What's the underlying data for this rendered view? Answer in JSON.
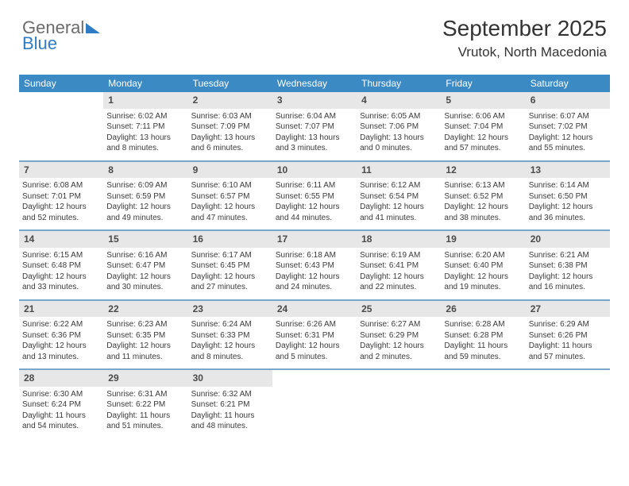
{
  "brand": {
    "word1": "General",
    "word2": "Blue"
  },
  "header": {
    "month": "September 2025",
    "location": "Vrutok, North Macedonia"
  },
  "style": {
    "header_bg": "#3b8ac4",
    "header_fg": "#ffffff",
    "daynum_bg": "#e7e7e7",
    "week_border": "#7aa6c9",
    "text_color": "#333333",
    "logo_gray": "#6b6b6b",
    "logo_blue": "#2f7cc4",
    "font_family": "Arial",
    "month_fontsize": 28,
    "location_fontsize": 17,
    "dow_fontsize": 12,
    "daynum_fontsize": 12,
    "detail_fontsize": 10
  },
  "days_of_week": [
    "Sunday",
    "Monday",
    "Tuesday",
    "Wednesday",
    "Thursday",
    "Friday",
    "Saturday"
  ],
  "weeks": [
    [
      {
        "n": "",
        "sunrise": "",
        "sunset": "",
        "daylight": ""
      },
      {
        "n": "1",
        "sunrise": "Sunrise: 6:02 AM",
        "sunset": "Sunset: 7:11 PM",
        "daylight": "Daylight: 13 hours and 8 minutes."
      },
      {
        "n": "2",
        "sunrise": "Sunrise: 6:03 AM",
        "sunset": "Sunset: 7:09 PM",
        "daylight": "Daylight: 13 hours and 6 minutes."
      },
      {
        "n": "3",
        "sunrise": "Sunrise: 6:04 AM",
        "sunset": "Sunset: 7:07 PM",
        "daylight": "Daylight: 13 hours and 3 minutes."
      },
      {
        "n": "4",
        "sunrise": "Sunrise: 6:05 AM",
        "sunset": "Sunset: 7:06 PM",
        "daylight": "Daylight: 13 hours and 0 minutes."
      },
      {
        "n": "5",
        "sunrise": "Sunrise: 6:06 AM",
        "sunset": "Sunset: 7:04 PM",
        "daylight": "Daylight: 12 hours and 57 minutes."
      },
      {
        "n": "6",
        "sunrise": "Sunrise: 6:07 AM",
        "sunset": "Sunset: 7:02 PM",
        "daylight": "Daylight: 12 hours and 55 minutes."
      }
    ],
    [
      {
        "n": "7",
        "sunrise": "Sunrise: 6:08 AM",
        "sunset": "Sunset: 7:01 PM",
        "daylight": "Daylight: 12 hours and 52 minutes."
      },
      {
        "n": "8",
        "sunrise": "Sunrise: 6:09 AM",
        "sunset": "Sunset: 6:59 PM",
        "daylight": "Daylight: 12 hours and 49 minutes."
      },
      {
        "n": "9",
        "sunrise": "Sunrise: 6:10 AM",
        "sunset": "Sunset: 6:57 PM",
        "daylight": "Daylight: 12 hours and 47 minutes."
      },
      {
        "n": "10",
        "sunrise": "Sunrise: 6:11 AM",
        "sunset": "Sunset: 6:55 PM",
        "daylight": "Daylight: 12 hours and 44 minutes."
      },
      {
        "n": "11",
        "sunrise": "Sunrise: 6:12 AM",
        "sunset": "Sunset: 6:54 PM",
        "daylight": "Daylight: 12 hours and 41 minutes."
      },
      {
        "n": "12",
        "sunrise": "Sunrise: 6:13 AM",
        "sunset": "Sunset: 6:52 PM",
        "daylight": "Daylight: 12 hours and 38 minutes."
      },
      {
        "n": "13",
        "sunrise": "Sunrise: 6:14 AM",
        "sunset": "Sunset: 6:50 PM",
        "daylight": "Daylight: 12 hours and 36 minutes."
      }
    ],
    [
      {
        "n": "14",
        "sunrise": "Sunrise: 6:15 AM",
        "sunset": "Sunset: 6:48 PM",
        "daylight": "Daylight: 12 hours and 33 minutes."
      },
      {
        "n": "15",
        "sunrise": "Sunrise: 6:16 AM",
        "sunset": "Sunset: 6:47 PM",
        "daylight": "Daylight: 12 hours and 30 minutes."
      },
      {
        "n": "16",
        "sunrise": "Sunrise: 6:17 AM",
        "sunset": "Sunset: 6:45 PM",
        "daylight": "Daylight: 12 hours and 27 minutes."
      },
      {
        "n": "17",
        "sunrise": "Sunrise: 6:18 AM",
        "sunset": "Sunset: 6:43 PM",
        "daylight": "Daylight: 12 hours and 24 minutes."
      },
      {
        "n": "18",
        "sunrise": "Sunrise: 6:19 AM",
        "sunset": "Sunset: 6:41 PM",
        "daylight": "Daylight: 12 hours and 22 minutes."
      },
      {
        "n": "19",
        "sunrise": "Sunrise: 6:20 AM",
        "sunset": "Sunset: 6:40 PM",
        "daylight": "Daylight: 12 hours and 19 minutes."
      },
      {
        "n": "20",
        "sunrise": "Sunrise: 6:21 AM",
        "sunset": "Sunset: 6:38 PM",
        "daylight": "Daylight: 12 hours and 16 minutes."
      }
    ],
    [
      {
        "n": "21",
        "sunrise": "Sunrise: 6:22 AM",
        "sunset": "Sunset: 6:36 PM",
        "daylight": "Daylight: 12 hours and 13 minutes."
      },
      {
        "n": "22",
        "sunrise": "Sunrise: 6:23 AM",
        "sunset": "Sunset: 6:35 PM",
        "daylight": "Daylight: 12 hours and 11 minutes."
      },
      {
        "n": "23",
        "sunrise": "Sunrise: 6:24 AM",
        "sunset": "Sunset: 6:33 PM",
        "daylight": "Daylight: 12 hours and 8 minutes."
      },
      {
        "n": "24",
        "sunrise": "Sunrise: 6:26 AM",
        "sunset": "Sunset: 6:31 PM",
        "daylight": "Daylight: 12 hours and 5 minutes."
      },
      {
        "n": "25",
        "sunrise": "Sunrise: 6:27 AM",
        "sunset": "Sunset: 6:29 PM",
        "daylight": "Daylight: 12 hours and 2 minutes."
      },
      {
        "n": "26",
        "sunrise": "Sunrise: 6:28 AM",
        "sunset": "Sunset: 6:28 PM",
        "daylight": "Daylight: 11 hours and 59 minutes."
      },
      {
        "n": "27",
        "sunrise": "Sunrise: 6:29 AM",
        "sunset": "Sunset: 6:26 PM",
        "daylight": "Daylight: 11 hours and 57 minutes."
      }
    ],
    [
      {
        "n": "28",
        "sunrise": "Sunrise: 6:30 AM",
        "sunset": "Sunset: 6:24 PM",
        "daylight": "Daylight: 11 hours and 54 minutes."
      },
      {
        "n": "29",
        "sunrise": "Sunrise: 6:31 AM",
        "sunset": "Sunset: 6:22 PM",
        "daylight": "Daylight: 11 hours and 51 minutes."
      },
      {
        "n": "30",
        "sunrise": "Sunrise: 6:32 AM",
        "sunset": "Sunset: 6:21 PM",
        "daylight": "Daylight: 11 hours and 48 minutes."
      },
      {
        "n": "",
        "sunrise": "",
        "sunset": "",
        "daylight": ""
      },
      {
        "n": "",
        "sunrise": "",
        "sunset": "",
        "daylight": ""
      },
      {
        "n": "",
        "sunrise": "",
        "sunset": "",
        "daylight": ""
      },
      {
        "n": "",
        "sunrise": "",
        "sunset": "",
        "daylight": ""
      }
    ]
  ]
}
